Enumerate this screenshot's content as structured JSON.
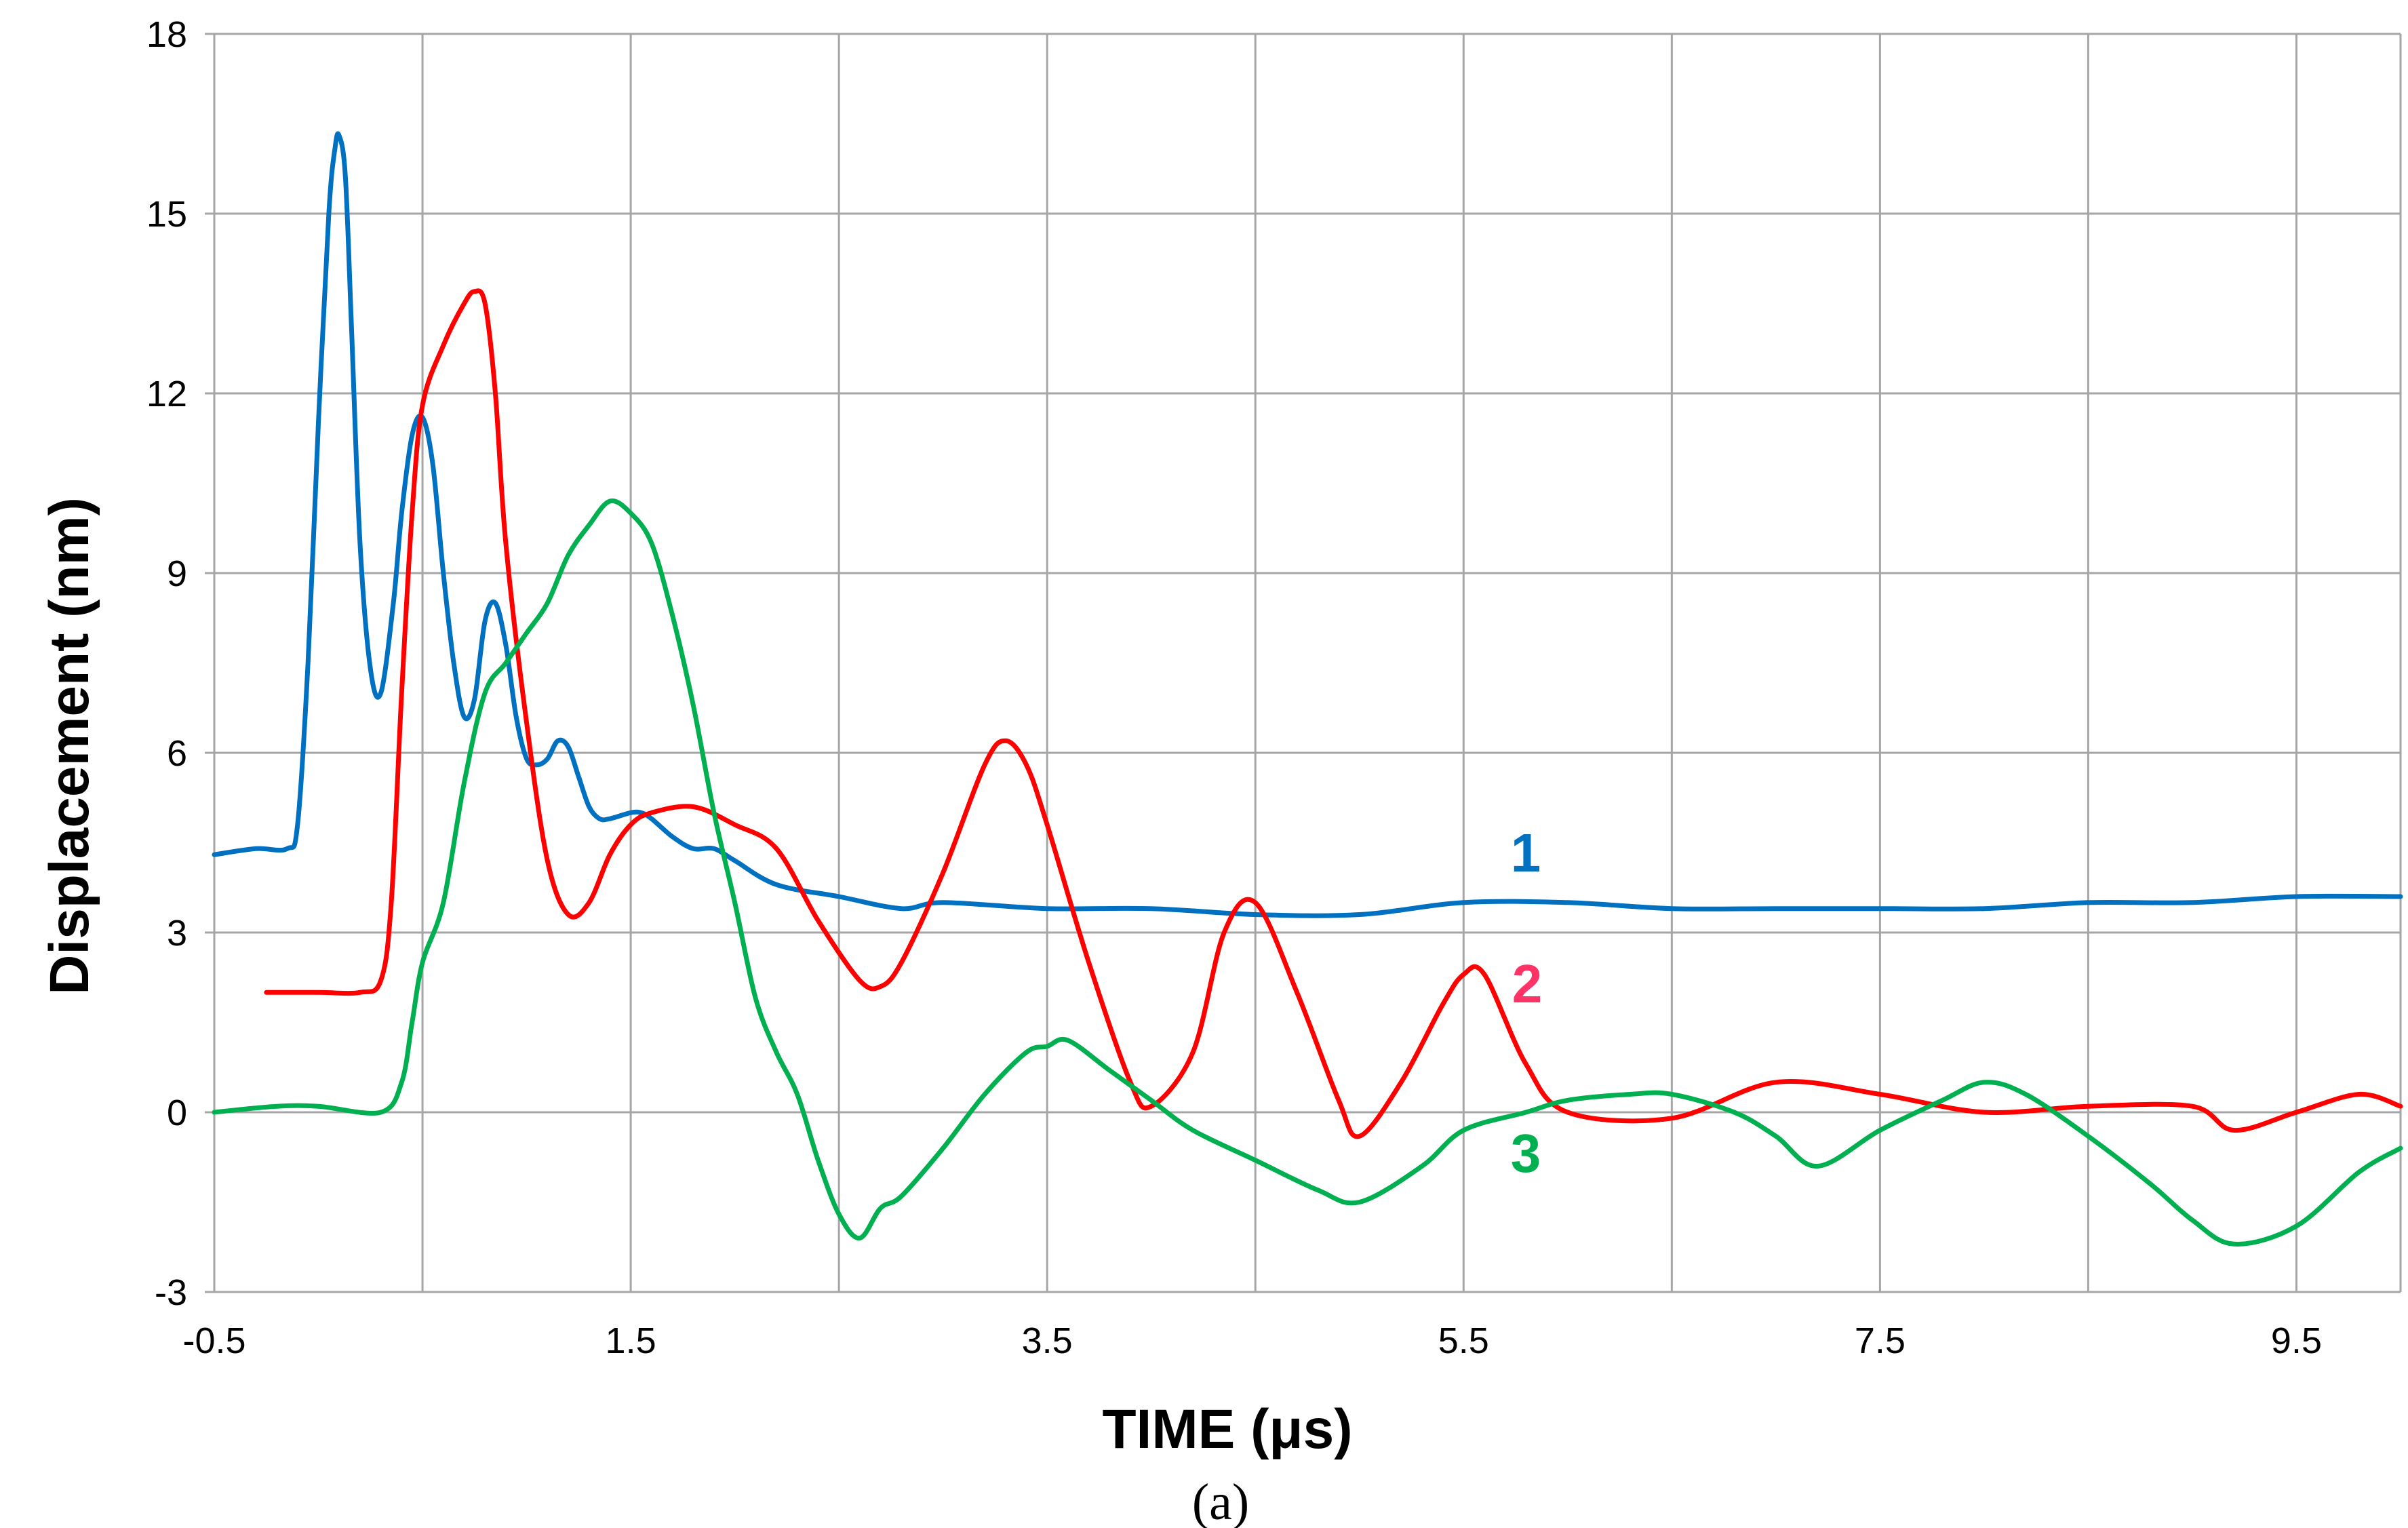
{
  "chart_data": {
    "type": "line",
    "caption": "(a)",
    "xlabel": "TIME  (μs)",
    "ylabel": "Displacement  (nm)",
    "xlim": [
      -0.5,
      10
    ],
    "ylim": [
      -3,
      18
    ],
    "x_ticks": [
      "-0.5",
      "1.5",
      "3.5",
      "5.5",
      "7.5",
      "9.5"
    ],
    "y_ticks": [
      "-3",
      "0",
      "3",
      "6",
      "9",
      "12",
      "15",
      "18"
    ],
    "grid": true,
    "series": [
      {
        "name": "1",
        "color": "#0070c0",
        "x": [
          -0.5,
          -0.3,
          -0.15,
          -0.1,
          -0.05,
          0.0,
          0.05,
          0.08,
          0.1,
          0.13,
          0.16,
          0.2,
          0.25,
          0.3,
          0.36,
          0.4,
          0.45,
          0.5,
          0.55,
          0.6,
          0.65,
          0.7,
          0.75,
          0.8,
          0.85,
          0.9,
          0.95,
          1.0,
          1.05,
          1.1,
          1.15,
          1.2,
          1.25,
          1.3,
          1.35,
          1.4,
          1.5,
          1.55,
          1.6,
          1.7,
          1.8,
          1.9,
          2.0,
          2.2,
          2.5,
          2.8,
          3.0,
          3.5,
          4.0,
          4.5,
          5.0,
          5.5,
          6.0,
          6.5,
          7.0,
          7.5,
          8.0,
          8.5,
          9.0,
          9.5,
          10.0
        ],
        "y": [
          4.3,
          4.4,
          4.4,
          4.8,
          7.5,
          11.5,
          15.0,
          16.1,
          16.3,
          15.6,
          13.0,
          9.5,
          7.4,
          7.0,
          8.5,
          10.0,
          11.3,
          11.6,
          10.8,
          9.0,
          7.5,
          6.6,
          6.9,
          8.2,
          8.5,
          7.8,
          6.6,
          5.9,
          5.8,
          5.9,
          6.2,
          6.1,
          5.6,
          5.1,
          4.9,
          4.9,
          5.0,
          5.0,
          4.9,
          4.6,
          4.4,
          4.4,
          4.2,
          3.8,
          3.6,
          3.4,
          3.5,
          3.4,
          3.4,
          3.3,
          3.3,
          3.5,
          3.5,
          3.4,
          3.4,
          3.4,
          3.4,
          3.5,
          3.5,
          3.6,
          3.6
        ]
      },
      {
        "name": "2",
        "color": "#ff0000",
        "x": [
          -0.25,
          0.0,
          0.2,
          0.3,
          0.35,
          0.4,
          0.45,
          0.5,
          0.6,
          0.7,
          0.75,
          0.8,
          0.85,
          0.9,
          1.0,
          1.1,
          1.2,
          1.3,
          1.4,
          1.5,
          1.6,
          1.8,
          2.0,
          2.2,
          2.4,
          2.6,
          2.7,
          2.8,
          3.0,
          3.2,
          3.3,
          3.4,
          3.5,
          3.7,
          3.9,
          4.0,
          4.2,
          4.35,
          4.5,
          4.7,
          4.9,
          5.0,
          5.2,
          5.4,
          5.5,
          5.6,
          5.8,
          6.0,
          6.5,
          7.0,
          7.5,
          8.0,
          8.5,
          9.0,
          9.2,
          9.5,
          9.8,
          10.0
        ],
        "y": [
          2.0,
          2.0,
          2.0,
          2.2,
          3.5,
          7.0,
          10.0,
          11.8,
          12.8,
          13.5,
          13.7,
          13.5,
          12.0,
          9.5,
          6.5,
          4.2,
          3.3,
          3.5,
          4.3,
          4.8,
          5.0,
          5.1,
          4.8,
          4.4,
          3.2,
          2.2,
          2.1,
          2.5,
          4.0,
          5.8,
          6.2,
          5.8,
          4.8,
          2.5,
          0.5,
          0.1,
          1.0,
          3.0,
          3.5,
          2.0,
          0.2,
          -0.4,
          0.5,
          1.8,
          2.3,
          2.3,
          0.8,
          0.0,
          -0.1,
          0.5,
          0.3,
          0.0,
          0.1,
          0.1,
          -0.3,
          0.0,
          0.3,
          0.1
        ]
      },
      {
        "name": "3",
        "color": "#00b050",
        "x": [
          -0.5,
          -0.2,
          0.0,
          0.3,
          0.4,
          0.45,
          0.5,
          0.6,
          0.7,
          0.8,
          0.9,
          1.0,
          1.1,
          1.2,
          1.3,
          1.4,
          1.5,
          1.6,
          1.7,
          1.8,
          1.9,
          2.0,
          2.1,
          2.2,
          2.3,
          2.4,
          2.5,
          2.6,
          2.7,
          2.8,
          3.0,
          3.2,
          3.4,
          3.5,
          3.6,
          3.8,
          4.0,
          4.2,
          4.5,
          4.8,
          5.0,
          5.3,
          5.5,
          5.8,
          6.0,
          6.3,
          6.5,
          6.8,
          7.0,
          7.2,
          7.5,
          7.8,
          8.0,
          8.2,
          8.5,
          8.8,
          9.0,
          9.2,
          9.5,
          9.8,
          10.0
        ],
        "y": [
          0.0,
          0.1,
          0.1,
          0.0,
          0.5,
          1.5,
          2.5,
          3.5,
          5.5,
          7.0,
          7.5,
          8.0,
          8.5,
          9.3,
          9.8,
          10.2,
          10.0,
          9.5,
          8.3,
          6.8,
          5.0,
          3.5,
          1.9,
          1.0,
          0.3,
          -0.8,
          -1.7,
          -2.1,
          -1.6,
          -1.4,
          -0.6,
          0.3,
          1.0,
          1.1,
          1.2,
          0.7,
          0.2,
          -0.3,
          -0.8,
          -1.3,
          -1.5,
          -0.9,
          -0.3,
          0.0,
          0.2,
          0.3,
          0.3,
          0.0,
          -0.4,
          -0.9,
          -0.3,
          0.2,
          0.5,
          0.3,
          -0.4,
          -1.2,
          -1.8,
          -2.2,
          -1.9,
          -1.0,
          -0.6
        ]
      }
    ]
  }
}
